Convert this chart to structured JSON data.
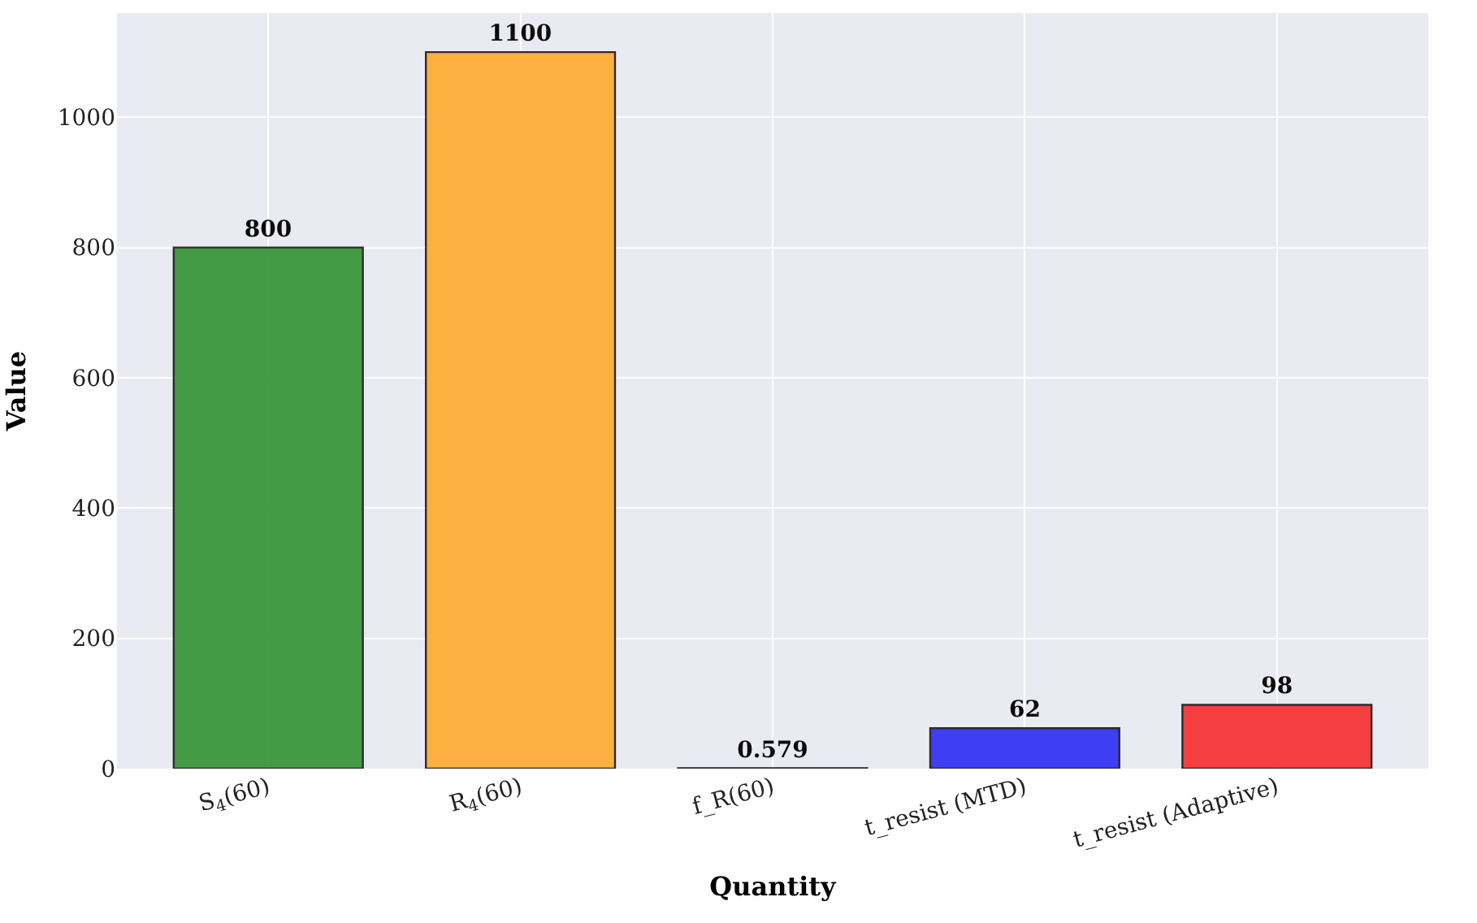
{
  "chart_data": {
    "type": "bar",
    "xlabel": "Quantity",
    "ylabel": "Value",
    "categories": [
      "S$_{4}$(60)",
      "R$_{4}$(60)",
      "f_R(60)",
      "t_resist (MTD)",
      "t_resist (Adaptive)"
    ],
    "values": [
      800,
      1100,
      0.579,
      62,
      98
    ],
    "colors": [
      "#3c973c",
      "#fcad35",
      "#555555",
      "#3535f5",
      "#f53535"
    ],
    "ylim": [
      0,
      1160
    ],
    "yticks": [
      0,
      200,
      400,
      600,
      800,
      1000
    ],
    "grid": true,
    "data_labels": true
  }
}
